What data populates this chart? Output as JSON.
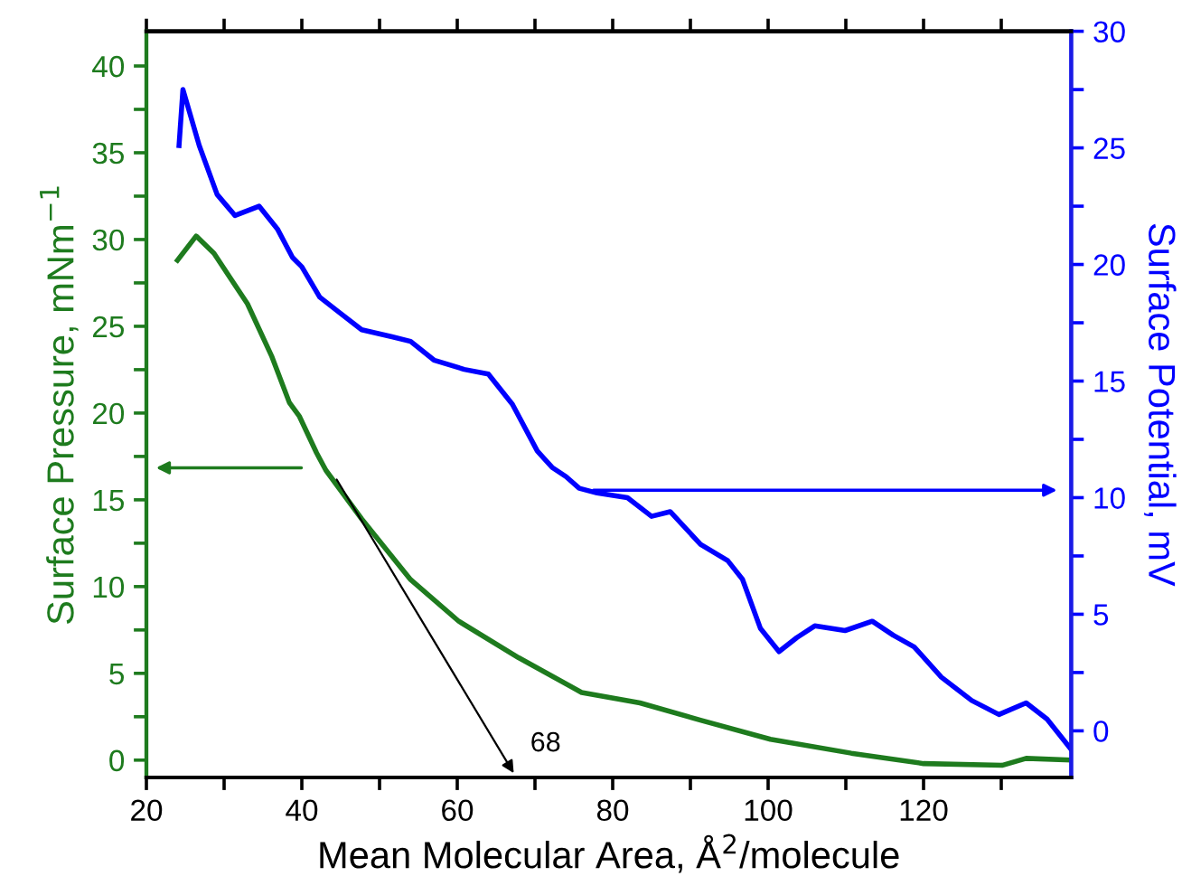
{
  "chart_data": {
    "type": "line",
    "xlabel": "Mean Molecular Area, Å$^{2}$/molecule",
    "ylabel": "Surface Pressure, mNm$^{−1}$",
    "y2label": "Surface Potential, mV",
    "xlim": [
      20,
      139
    ],
    "ylim": [
      -1,
      42
    ],
    "y2lim": [
      -2,
      30
    ],
    "xticks": [
      20,
      {
        "value": 30,
        "label": null
      },
      40,
      {
        "value": 50,
        "label": null
      },
      60,
      {
        "value": 70,
        "label": null
      },
      80,
      {
        "value": 90,
        "label": null
      },
      100,
      {
        "value": 110,
        "label": null
      },
      120,
      {
        "value": 130,
        "label": null
      }
    ],
    "yticks": [
      0,
      {
        "value": 2.5,
        "label": null
      },
      5,
      {
        "value": 7.5,
        "label": null
      },
      10,
      {
        "value": 12.5,
        "label": null
      },
      15,
      {
        "value": 17.5,
        "label": null
      },
      20,
      {
        "value": 22.5,
        "label": null
      },
      25,
      {
        "value": 27.5,
        "label": null
      },
      30,
      {
        "value": 32.5,
        "label": null
      },
      35,
      {
        "value": 37.5,
        "label": null
      },
      40
    ],
    "y2ticks": [
      0,
      {
        "value": 2.5,
        "label": null
      },
      5,
      {
        "value": 7.5,
        "label": null
      },
      10,
      {
        "value": 12.5,
        "label": null
      },
      15,
      {
        "value": 17.5,
        "label": null
      },
      20,
      {
        "value": 22.5,
        "label": null
      },
      25,
      {
        "value": 27.5,
        "label": null
      },
      30
    ],
    "grid": false,
    "legend": false,
    "marker": "none",
    "line_style": "solid",
    "annotations": [
      "68"
    ],
    "series": [
      {
        "color": "#1e7b1e",
        "x": [
          24.0,
          26.4,
          28.7,
          33,
          36.1,
          38.4,
          39.7,
          41.9,
          43.1,
          47.7,
          54,
          60.2,
          67.9,
          76,
          83.5,
          91.3,
          100.3,
          110.7,
          120,
          130.1,
          133.2,
          139
        ],
        "values": [
          28.8,
          30.2,
          29.2,
          26.3,
          23.3,
          20.6,
          19.8,
          17.7,
          16.7,
          13.9,
          10.4,
          8.0,
          5.9,
          3.9,
          3.3,
          2.3,
          1.2,
          0.4,
          -0.2,
          -0.3,
          0.1,
          0
        ]
      },
      {
        "color": "#0000ff",
        "axis": "y2",
        "x": [
          24.2,
          24.7,
          26.8,
          29.1,
          31.4,
          34.5,
          36.9,
          38.8,
          40,
          42.3,
          44.6,
          47.7,
          51.6,
          54,
          57,
          60.9,
          64,
          67.1,
          70.3,
          72.2,
          74,
          75.7,
          78,
          81.9,
          85,
          87.4,
          91.3,
          94.8,
          96.7,
          99,
          101.4,
          103.7,
          106,
          109.9,
          113.4,
          116.1,
          118.8,
          122.3,
          126.2,
          129.7,
          133.2,
          135.9,
          139
        ],
        "values": [
          25.1,
          27.5,
          25.1,
          23.0,
          22.1,
          22.5,
          21.5,
          20.3,
          19.9,
          18.6,
          18.0,
          17.2,
          16.9,
          16.7,
          15.9,
          15.5,
          15.3,
          14.0,
          12.0,
          11.3,
          10.9,
          10.4,
          10.2,
          10.0,
          9.2,
          9.4,
          8.0,
          7.3,
          6.5,
          4.4,
          3.4,
          4.0,
          4.5,
          4.3,
          4.7,
          4.1,
          3.6,
          2.3,
          1.3,
          0.7,
          1.2,
          0.5,
          -0.8
        ]
      }
    ]
  }
}
